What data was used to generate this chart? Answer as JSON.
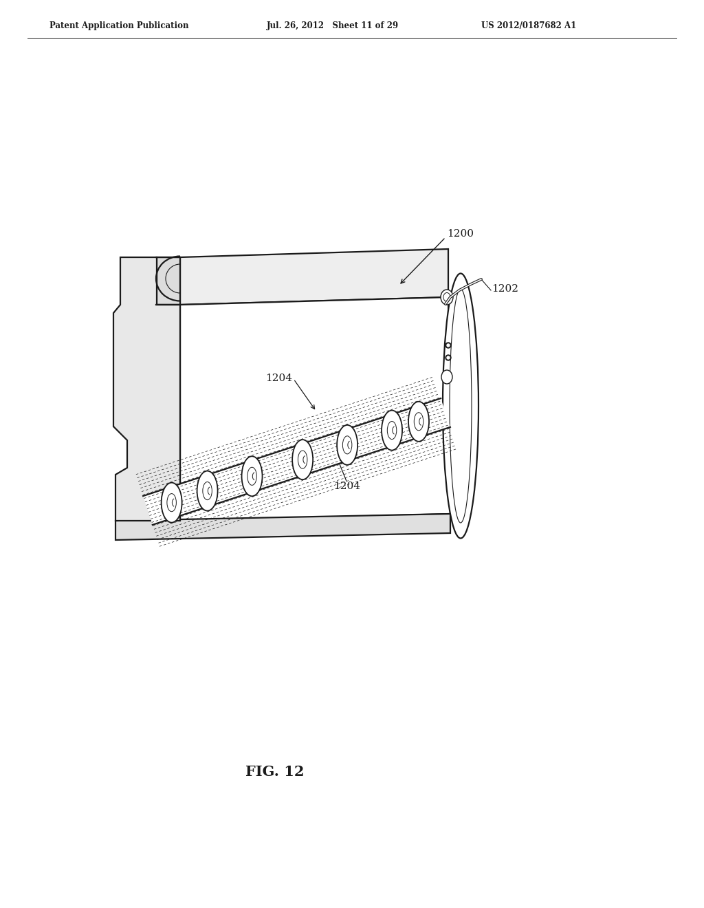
{
  "background_color": "#ffffff",
  "header_left": "Patent Application Publication",
  "header_mid": "Jul. 26, 2012   Sheet 11 of 29",
  "header_right": "US 2012/0187682 A1",
  "fig_label": "FIG. 12",
  "label_1200": "1200",
  "label_1202": "1202",
  "label_1204a": "1204",
  "label_1204b": "1204",
  "line_color": "#1a1a1a",
  "lw": 1.6,
  "tlw": 0.8
}
